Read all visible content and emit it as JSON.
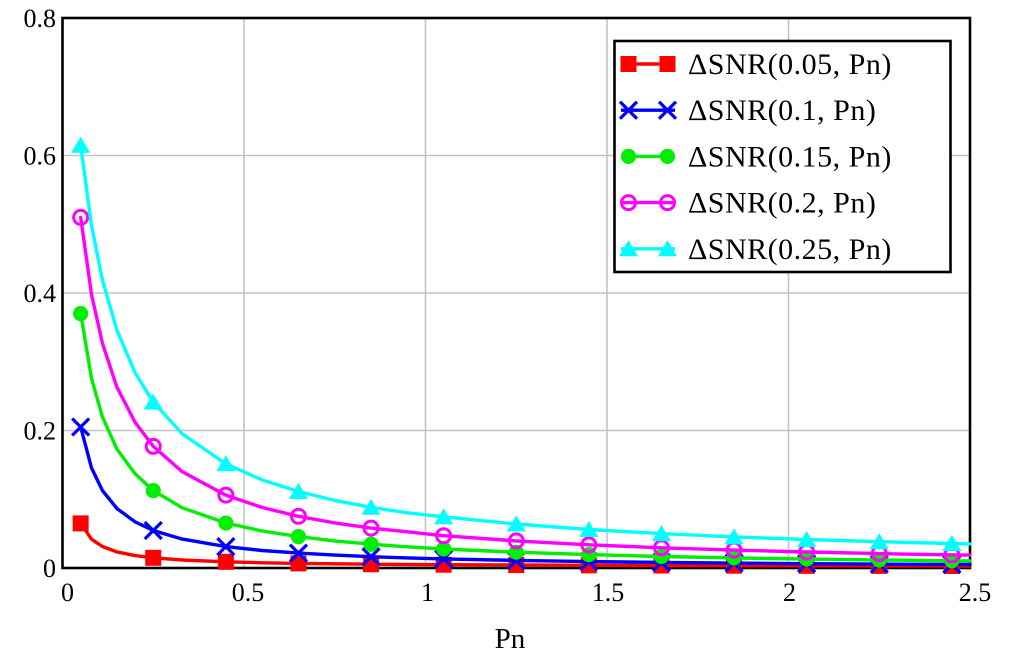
{
  "chart_data": {
    "type": "line",
    "title": "",
    "xlabel": "Pn",
    "ylabel": "",
    "xlim": [
      0,
      2.5
    ],
    "ylim": [
      0,
      0.8
    ],
    "x_tick_values": [
      0,
      0.5,
      1,
      1.5,
      2,
      2.5
    ],
    "x_tick_labels": [
      "0",
      "0.5",
      "1",
      "1.5",
      "2",
      "2.5"
    ],
    "y_tick_values": [
      0,
      0.2,
      0.4,
      0.6,
      0.8
    ],
    "y_tick_labels": [
      "0",
      "0.2",
      "0.4",
      "0.6",
      "0.8"
    ],
    "grid": true,
    "grid_color": "#c4c4c4",
    "axis_color": "#000000",
    "background_color": "#ffffff",
    "legend_position": "top-right",
    "legend_border_color": "#000000",
    "legend_fill": "#ffffff",
    "x": [
      0.05,
      0.08,
      0.11,
      0.15,
      0.2,
      0.25,
      0.33,
      0.45,
      0.55,
      0.65,
      0.75,
      0.85,
      0.95,
      1.05,
      1.25,
      1.45,
      1.65,
      1.85,
      2.05,
      2.25,
      2.45,
      2.5
    ],
    "marker_indices": [
      0,
      5,
      7,
      9,
      11,
      13,
      14,
      15,
      16,
      17,
      18,
      19,
      20
    ],
    "marker_x": [
      0.05,
      0.25,
      0.45,
      0.65,
      0.85,
      1.05,
      1.25,
      1.45,
      1.65,
      1.85,
      2.05,
      2.25,
      2.45
    ],
    "series": [
      {
        "name": "ΔSNR(0.05, Pn)",
        "color": "#ff0000",
        "marker": "square-filled",
        "y": [
          0.0649,
          0.0419,
          0.0312,
          0.0234,
          0.018,
          0.0148,
          0.0116,
          0.009,
          0.0076,
          0.0067,
          0.0061,
          0.0055,
          0.0051,
          0.0048,
          0.0043,
          0.0039,
          0.0036,
          0.0034,
          0.0032,
          0.0031,
          0.003,
          0.0029
        ]
      },
      {
        "name": "ΔSNR(0.1, Pn)",
        "color": "#0000ff",
        "marker": "x-cross",
        "y": [
          0.2051,
          0.1456,
          0.1127,
          0.0866,
          0.067,
          0.0546,
          0.042,
          0.0311,
          0.0255,
          0.0216,
          0.0187,
          0.0164,
          0.0147,
          0.0132,
          0.011,
          0.0093,
          0.0081,
          0.0071,
          0.0063,
          0.0057,
          0.0052,
          0.0051
        ]
      },
      {
        "name": "ΔSNR(0.15, Pn)",
        "color": "#00ee00",
        "marker": "circle-filled",
        "y": [
          0.37,
          0.276,
          0.22,
          0.173,
          0.137,
          0.1126,
          0.0876,
          0.0654,
          0.0538,
          0.0456,
          0.0394,
          0.0346,
          0.0308,
          0.0277,
          0.023,
          0.0195,
          0.0168,
          0.0147,
          0.013,
          0.0116,
          0.0105,
          0.0102
        ]
      },
      {
        "name": "ΔSNR(0.2, Pn)",
        "color": "#ff00ff",
        "marker": "circle-open",
        "y": [
          0.51,
          0.398,
          0.327,
          0.263,
          0.212,
          0.1769,
          0.14,
          0.106,
          0.088,
          0.0752,
          0.0656,
          0.058,
          0.0526,
          0.047,
          0.0394,
          0.0337,
          0.0294,
          0.026,
          0.0233,
          0.021,
          0.0191,
          0.0187
        ]
      },
      {
        "name": "ΔSNR(0.25, Pn)",
        "color": "#00ffff",
        "marker": "triangle-filled",
        "y": [
          0.615,
          0.498,
          0.419,
          0.346,
          0.284,
          0.2413,
          0.195,
          0.1516,
          0.128,
          0.1113,
          0.0984,
          0.0883,
          0.0803,
          0.0745,
          0.064,
          0.056,
          0.05,
          0.0453,
          0.0415,
          0.0383,
          0.0356,
          0.035
        ]
      }
    ]
  }
}
